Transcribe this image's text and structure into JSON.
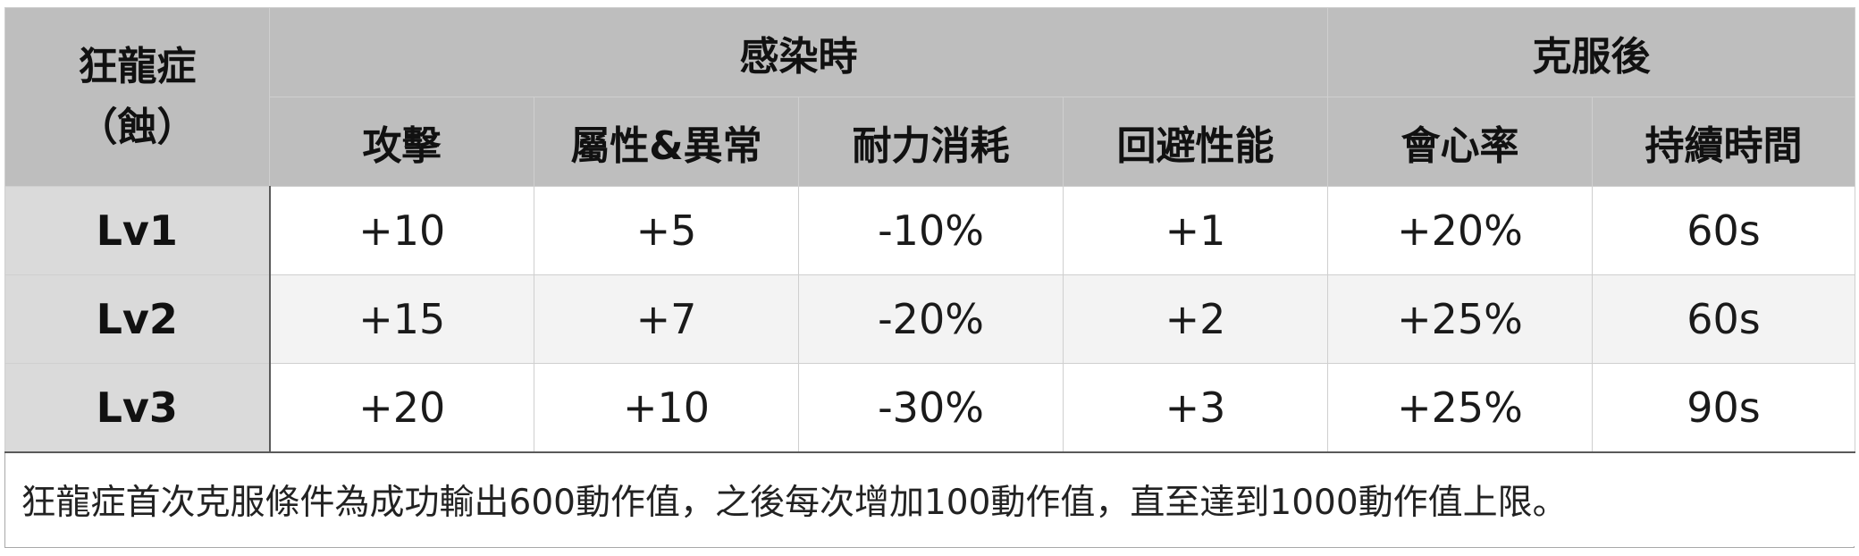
{
  "table": {
    "corner_title": "狂龍症",
    "corner_subtitle": "（蝕）",
    "group_infected": "感染時",
    "group_overcome": "克服後",
    "columns": [
      "攻擊",
      "屬性&異常",
      "耐力消耗",
      "回避性能",
      "會心率",
      "持續時間"
    ],
    "rows": [
      {
        "level": "Lv1",
        "cells": [
          "+10",
          "+5",
          "-10%",
          "+1",
          "+20%",
          "60s"
        ]
      },
      {
        "level": "Lv2",
        "cells": [
          "+15",
          "+7",
          "-20%",
          "+2",
          "+25%",
          "60s"
        ]
      },
      {
        "level": "Lv3",
        "cells": [
          "+20",
          "+10",
          "-30%",
          "+3",
          "+25%",
          "90s"
        ]
      }
    ],
    "note": "狂龍症首次克服條件為成功輸出600動作值，之後每次增加100動作值，直至達到1000動作值上限。"
  },
  "colors": {
    "header_bg": "#bebebe",
    "level_col_bg": "#dadada",
    "alt_row_bg": "#f3f3f3",
    "rule": "#5a5a5a"
  }
}
